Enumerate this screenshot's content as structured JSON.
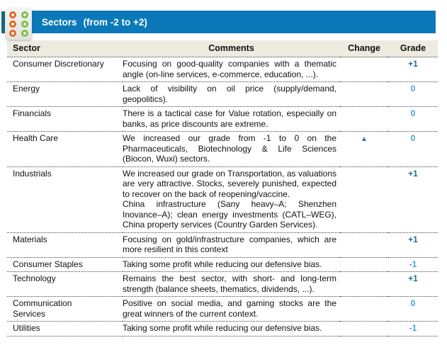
{
  "header": {
    "title": "Sectors",
    "title_range": "(from -2 to +2)"
  },
  "logo": {
    "description": "six-dot brand mark, orange and green rings"
  },
  "table": {
    "columns": [
      "Sector",
      "Comments",
      "Change",
      "Grade"
    ],
    "rows": [
      {
        "sector": "Consumer Discretionary",
        "comments": [
          "Focusing on good-quality companies with a thematic angle (on-line services, e-commerce, education, ...)."
        ],
        "change": "",
        "grade": "+1"
      },
      {
        "sector": "Energy",
        "comments": [
          "Lack of visibility on oil price (supply/demand, geopolitics)."
        ],
        "change": "",
        "grade": "0"
      },
      {
        "sector": "Financials",
        "comments": [
          "There is a tactical case for Value rotation, especially on banks, as price discounts are extreme."
        ],
        "change": "",
        "grade": "0"
      },
      {
        "sector": "Health Care",
        "comments": [
          "We increased our grade from -1 to 0 on the Pharmaceuticals, Biotechnology & Life Sciences (Biocon, Wuxi) sectors."
        ],
        "change": "▲",
        "grade": "0"
      },
      {
        "sector": "Industrials",
        "comments": [
          "We increased our grade on Transportation, as valuations are very attractive. Stocks, severely punished, expected to recover on the back of reopening/vaccine.",
          "China infrastructure (Sany heavy–A; Shenzhen Inovance–A); clean energy investments (CATL–WEG), China property services (Country Garden Services)."
        ],
        "change": "",
        "grade": "+1"
      },
      {
        "sector": "Materials",
        "comments": [
          "Focusing on gold/infrastructure companies, which are more resilient in this context"
        ],
        "change": "",
        "grade": "+1"
      },
      {
        "sector": "Consumer Staples",
        "comments": [
          "Taking some profit while reducing our defensive bias."
        ],
        "change": "",
        "grade": "-1"
      },
      {
        "sector": "Technology",
        "comments": [
          "Remains the best sector, with short- and long-term strength (balance sheets, thematics, dividends, ...)."
        ],
        "change": "",
        "grade": "+1"
      },
      {
        "sector": "Communication Services",
        "comments": [
          "Positive on social media, and gaming stocks are the great winners of the current context."
        ],
        "change": "",
        "grade": "0"
      },
      {
        "sector": "Utilities",
        "comments": [
          "Taking some profit while reducing our defensive bias."
        ],
        "change": "",
        "grade": "-1"
      }
    ]
  },
  "colors": {
    "title_bar": "#0b79b9",
    "header_row_bg": "#edebdf",
    "grade_positive": "#1a6d96",
    "grade_neutral": "#44a1cc",
    "grade_negative": "#44a1cc",
    "change_up": "#2272b8",
    "logo_orange": "#e96424",
    "logo_green": "#7cc142",
    "accent_teal": "#15687d"
  }
}
